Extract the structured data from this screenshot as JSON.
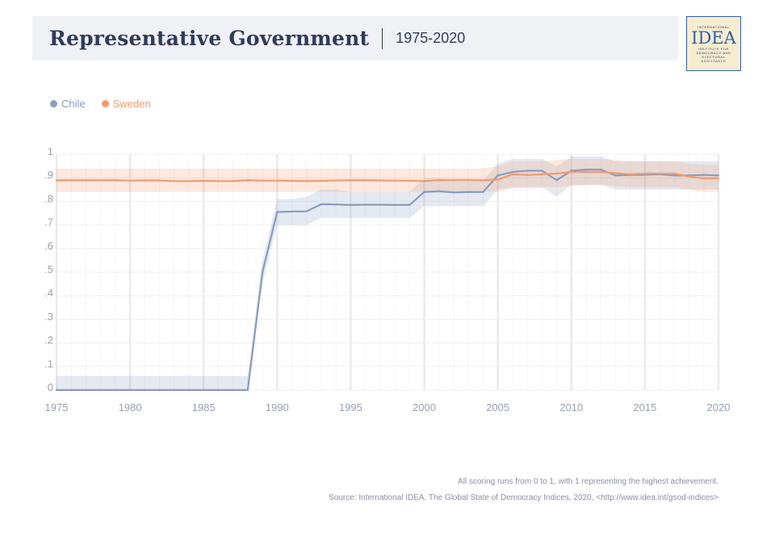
{
  "header": {
    "title": "Representative Government",
    "period": "1975-2020"
  },
  "logo": {
    "top_text": "INTERNATIONAL",
    "main_text": "IDEA",
    "bottom_lines": [
      "INSTITUTE FOR",
      "DEMOCRACY AND",
      "ELECTORAL",
      "ASSISTANCE"
    ]
  },
  "colors": {
    "chile": "#8a9bbe",
    "sweden": "#f49a6d",
    "title": "#2f3b5e",
    "grid": "#eeeeee"
  },
  "chart_data": {
    "type": "line",
    "x": [
      1975,
      1976,
      1977,
      1978,
      1979,
      1980,
      1981,
      1982,
      1983,
      1984,
      1985,
      1986,
      1987,
      1988,
      1989,
      1990,
      1991,
      1992,
      1993,
      1994,
      1995,
      1996,
      1997,
      1998,
      1999,
      2000,
      2001,
      2002,
      2003,
      2004,
      2005,
      2006,
      2007,
      2008,
      2009,
      2010,
      2011,
      2012,
      2013,
      2014,
      2015,
      2016,
      2017,
      2018,
      2019,
      2020
    ],
    "x_ticks": [
      "1975",
      "1980",
      "1985",
      "1990",
      "1995",
      "2000",
      "2005",
      "2010",
      "2015",
      "2020"
    ],
    "y_ticks": [
      "0",
      ".1",
      ".2",
      ".3",
      ".4",
      ".5",
      ".6",
      ".7",
      ".8",
      ".9",
      "1"
    ],
    "ylim": [
      0,
      1
    ],
    "grid": true,
    "legend_position": "top-left",
    "series": [
      {
        "name": "Chile",
        "values": [
          0,
          0,
          0,
          0,
          0,
          0,
          0,
          0,
          0,
          0,
          0,
          0,
          0,
          0,
          0.5,
          0.755,
          0.757,
          0.758,
          0.788,
          0.787,
          0.785,
          0.786,
          0.786,
          0.785,
          0.785,
          0.84,
          0.843,
          0.838,
          0.84,
          0.84,
          0.91,
          0.925,
          0.93,
          0.93,
          0.89,
          0.93,
          0.935,
          0.935,
          0.91,
          0.912,
          0.913,
          0.915,
          0.91,
          0.91,
          0.912,
          0.91
        ],
        "lower": [
          0,
          0,
          0,
          0,
          0,
          0,
          0,
          0,
          0,
          0,
          0,
          0,
          0,
          0,
          0.45,
          0.7,
          0.7,
          0.7,
          0.73,
          0.73,
          0.73,
          0.73,
          0.73,
          0.73,
          0.73,
          0.78,
          0.78,
          0.78,
          0.78,
          0.78,
          0.85,
          0.86,
          0.86,
          0.86,
          0.82,
          0.87,
          0.87,
          0.87,
          0.85,
          0.85,
          0.85,
          0.85,
          0.85,
          0.85,
          0.85,
          0.85
        ],
        "upper": [
          0.06,
          0.06,
          0.06,
          0.06,
          0.06,
          0.06,
          0.06,
          0.06,
          0.06,
          0.06,
          0.06,
          0.06,
          0.06,
          0.06,
          0.55,
          0.81,
          0.81,
          0.82,
          0.85,
          0.85,
          0.84,
          0.84,
          0.84,
          0.84,
          0.84,
          0.9,
          0.9,
          0.89,
          0.89,
          0.89,
          0.96,
          0.98,
          0.98,
          0.98,
          0.95,
          0.99,
          0.99,
          0.99,
          0.97,
          0.97,
          0.97,
          0.97,
          0.97,
          0.97,
          0.97,
          0.97
        ]
      },
      {
        "name": "Sweden",
        "values": [
          0.89,
          0.89,
          0.89,
          0.89,
          0.89,
          0.888,
          0.889,
          0.889,
          0.886,
          0.886,
          0.887,
          0.886,
          0.886,
          0.89,
          0.888,
          0.888,
          0.887,
          0.886,
          0.887,
          0.889,
          0.89,
          0.89,
          0.889,
          0.888,
          0.888,
          0.886,
          0.89,
          0.891,
          0.891,
          0.89,
          0.892,
          0.915,
          0.912,
          0.915,
          0.918,
          0.925,
          0.925,
          0.925,
          0.92,
          0.915,
          0.918,
          0.918,
          0.918,
          0.905,
          0.898,
          0.898
        ],
        "lower": [
          0.84,
          0.84,
          0.84,
          0.84,
          0.84,
          0.84,
          0.84,
          0.84,
          0.84,
          0.84,
          0.84,
          0.84,
          0.84,
          0.84,
          0.84,
          0.84,
          0.84,
          0.84,
          0.84,
          0.84,
          0.84,
          0.84,
          0.84,
          0.84,
          0.84,
          0.84,
          0.84,
          0.84,
          0.84,
          0.84,
          0.84,
          0.855,
          0.855,
          0.86,
          0.86,
          0.865,
          0.87,
          0.87,
          0.865,
          0.86,
          0.86,
          0.86,
          0.86,
          0.85,
          0.84,
          0.84
        ],
        "upper": [
          0.94,
          0.94,
          0.94,
          0.94,
          0.94,
          0.94,
          0.94,
          0.94,
          0.94,
          0.94,
          0.94,
          0.94,
          0.94,
          0.94,
          0.94,
          0.94,
          0.94,
          0.94,
          0.94,
          0.94,
          0.94,
          0.94,
          0.94,
          0.94,
          0.94,
          0.94,
          0.94,
          0.94,
          0.94,
          0.94,
          0.95,
          0.97,
          0.97,
          0.97,
          0.975,
          0.98,
          0.98,
          0.98,
          0.975,
          0.97,
          0.97,
          0.97,
          0.97,
          0.96,
          0.955,
          0.955
        ]
      }
    ]
  },
  "footer": {
    "note": "All scoring runs from 0 to 1, with 1 representing the highest achievement.",
    "source": "Source: International IDEA, The Global State of Democracy Indices, 2020, <http://www.idea.int/gsod-indices>"
  }
}
